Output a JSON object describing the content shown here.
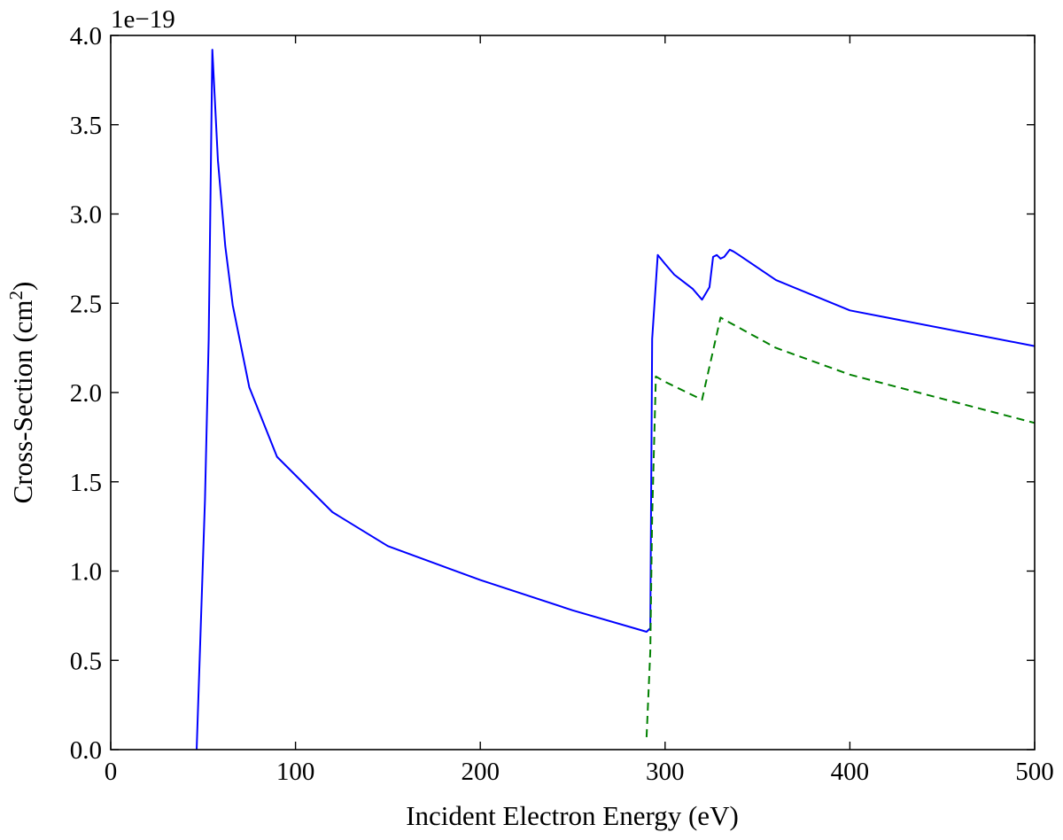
{
  "chart_data": {
    "type": "line",
    "title": "",
    "xlabel": "Incident Electron Energy (eV)",
    "ylabel_main": "Cross-Section (cm",
    "ylabel_sup": "2",
    "ylabel_tail": ")",
    "y_offset_label": "1e−19",
    "xlim": [
      0,
      500
    ],
    "ylim": [
      0.0,
      4.0
    ],
    "y_scale_factor": 1e-19,
    "x_ticks": [
      0,
      100,
      200,
      300,
      400,
      500
    ],
    "x_tick_labels": [
      "0",
      "100",
      "200",
      "300",
      "400",
      "500"
    ],
    "y_ticks": [
      0.0,
      0.5,
      1.0,
      1.5,
      2.0,
      2.5,
      3.0,
      3.5,
      4.0
    ],
    "y_tick_labels": [
      "0.0",
      "0.5",
      "1.0",
      "1.5",
      "2.0",
      "2.5",
      "3.0",
      "3.5",
      "4.0"
    ],
    "grid": false,
    "legend": "none",
    "series": [
      {
        "color": "#0000ff",
        "dash": "solid",
        "points": [
          [
            46.5,
            0.0
          ],
          [
            51,
            1.4
          ],
          [
            53,
            2.3
          ],
          [
            55,
            3.92
          ],
          [
            58,
            3.3
          ],
          [
            62,
            2.82
          ],
          [
            66,
            2.49
          ],
          [
            75,
            2.03
          ],
          [
            90,
            1.64
          ],
          [
            120,
            1.33
          ],
          [
            150,
            1.14
          ],
          [
            200,
            0.95
          ],
          [
            250,
            0.78
          ],
          [
            290,
            0.66
          ],
          [
            292,
            0.68
          ],
          [
            293,
            2.3
          ],
          [
            296,
            2.77
          ],
          [
            300,
            2.72
          ],
          [
            305,
            2.66
          ],
          [
            310,
            2.62
          ],
          [
            315,
            2.58
          ],
          [
            320,
            2.52
          ],
          [
            324,
            2.59
          ],
          [
            326,
            2.76
          ],
          [
            328,
            2.77
          ],
          [
            330,
            2.75
          ],
          [
            332,
            2.76
          ],
          [
            335,
            2.8
          ],
          [
            337,
            2.79
          ],
          [
            340,
            2.77
          ],
          [
            360,
            2.63
          ],
          [
            400,
            2.46
          ],
          [
            500,
            2.26
          ]
        ]
      },
      {
        "color": "#008000",
        "dash": "dashed",
        "points": [
          [
            290,
            0.07
          ],
          [
            292,
            0.55
          ],
          [
            293,
            1.3
          ],
          [
            295,
            2.09
          ],
          [
            300,
            2.06
          ],
          [
            320,
            1.96
          ],
          [
            330,
            2.42
          ],
          [
            360,
            2.25
          ],
          [
            400,
            2.1
          ],
          [
            500,
            1.83
          ]
        ]
      }
    ]
  }
}
